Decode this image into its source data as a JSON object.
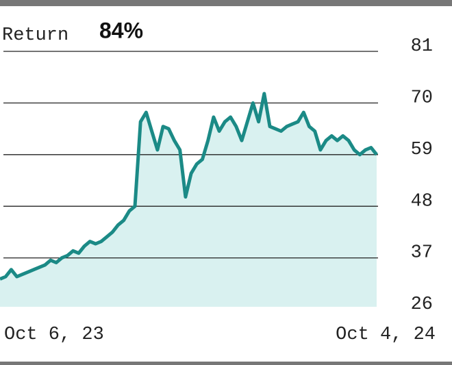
{
  "chart_data": {
    "type": "area",
    "title": "Return",
    "annotation": "84%",
    "categories": [
      "Oct 6, 23",
      null,
      null,
      null,
      null,
      null,
      null,
      null,
      null,
      null,
      null,
      null,
      null,
      null,
      null,
      null,
      null,
      null,
      null,
      null,
      null,
      null,
      null,
      null,
      null,
      null,
      null,
      null,
      null,
      null,
      null,
      null,
      null,
      null,
      null,
      null,
      null,
      null,
      null,
      null,
      null,
      null,
      null,
      null,
      null,
      null,
      null,
      null,
      null,
      null,
      null,
      null,
      null,
      null,
      null,
      null,
      null,
      null,
      null,
      null,
      null,
      null,
      null,
      null,
      null,
      null,
      null,
      "Oct 4, 24"
    ],
    "values": [
      32.5,
      33,
      34.5,
      33,
      33.5,
      34,
      34.5,
      35,
      35.5,
      36.5,
      36,
      37,
      37.5,
      38.5,
      38,
      39.5,
      40.5,
      40,
      40.5,
      41.5,
      42.5,
      44,
      45,
      47,
      48,
      66,
      68,
      64,
      60,
      65,
      64.5,
      62,
      60,
      50,
      55,
      57,
      58,
      62,
      67,
      64,
      66,
      67,
      65,
      62,
      66,
      70,
      66,
      72,
      65,
      64.5,
      64,
      65,
      65.5,
      66,
      68,
      65,
      64,
      60,
      62,
      63,
      62,
      63,
      62,
      60,
      59,
      60,
      60.5,
      59
    ],
    "color": "#1b8a86",
    "fill": "#d9f1f0",
    "ylim": [
      26,
      81
    ],
    "yticks": [
      26,
      37,
      48,
      59,
      70,
      81
    ],
    "grid": true
  }
}
